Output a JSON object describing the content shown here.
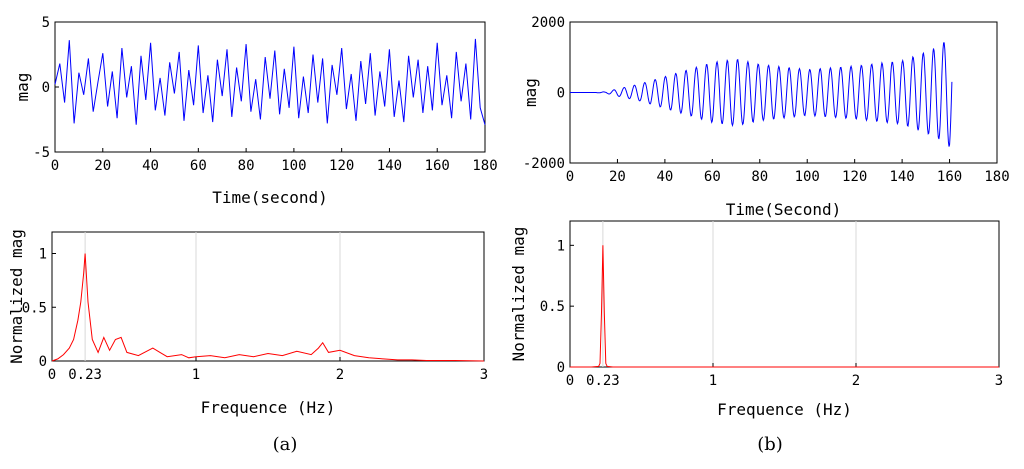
{
  "chart_data": [
    {
      "id": "a-top",
      "type": "line",
      "xlabel": "Time(second)",
      "ylabel": "mag",
      "xlim": [
        0,
        180
      ],
      "ylim": [
        -5,
        5
      ],
      "xticks": [
        0,
        20,
        40,
        60,
        80,
        100,
        120,
        140,
        160,
        180
      ],
      "yticks": [
        -5,
        0,
        5
      ],
      "color": "#0000ff",
      "series": [
        {
          "name": "signal",
          "x": [
            0,
            2,
            4,
            6,
            8,
            10,
            12,
            14,
            16,
            18,
            20,
            22,
            24,
            26,
            28,
            30,
            32,
            34,
            36,
            38,
            40,
            42,
            44,
            46,
            48,
            50,
            52,
            54,
            56,
            58,
            60,
            62,
            64,
            66,
            68,
            70,
            72,
            74,
            76,
            78,
            80,
            82,
            84,
            86,
            88,
            90,
            92,
            94,
            96,
            98,
            100,
            102,
            104,
            106,
            108,
            110,
            112,
            114,
            116,
            118,
            120,
            122,
            124,
            126,
            128,
            130,
            132,
            134,
            136,
            138,
            140,
            142,
            144,
            146,
            148,
            150,
            152,
            154,
            156,
            158,
            160,
            162,
            164,
            166,
            168,
            170,
            172,
            174,
            176,
            178,
            180
          ],
          "values": [
            0.2,
            1.8,
            -1.2,
            3.6,
            -2.8,
            1.1,
            -0.6,
            2.2,
            -1.9,
            0.4,
            2.6,
            -1.5,
            1.2,
            -2.4,
            3.0,
            -0.8,
            1.6,
            -2.9,
            2.4,
            -1.0,
            3.4,
            -1.8,
            0.7,
            -2.2,
            1.9,
            -0.5,
            2.7,
            -2.6,
            1.3,
            -1.4,
            3.2,
            -2.0,
            0.9,
            -2.7,
            2.1,
            -0.7,
            2.9,
            -2.3,
            1.5,
            -1.1,
            3.3,
            -1.9,
            0.6,
            -2.5,
            2.3,
            -0.9,
            2.8,
            -2.1,
            1.4,
            -1.6,
            3.1,
            -2.4,
            0.8,
            -2.0,
            2.5,
            -1.2,
            2.2,
            -2.8,
            1.7,
            -0.6,
            3.0,
            -1.7,
            1.0,
            -2.6,
            2.0,
            -1.3,
            2.6,
            -2.2,
            1.2,
            -1.5,
            2.9,
            -2.3,
            0.5,
            -2.7,
            2.4,
            -0.8,
            2.1,
            -2.0,
            1.6,
            -1.8,
            3.4,
            -1.4,
            0.9,
            -2.4,
            2.7,
            -1.1,
            1.8,
            -2.5,
            3.7,
            -1.6,
            -2.9
          ]
        }
      ]
    },
    {
      "id": "a-bottom",
      "type": "line",
      "xlabel": "Frequence (Hz)",
      "ylabel": "Normalized mag",
      "xlim": [
        0,
        3
      ],
      "ylim": [
        0,
        1.2
      ],
      "xticks": [
        0,
        1,
        2,
        3
      ],
      "xtick_labels": [
        "0",
        "1",
        "2",
        "3"
      ],
      "extra_xtick": 0.23,
      "extra_xtick_label": "0.23",
      "yticks": [
        0,
        0.5,
        1
      ],
      "ytick_labels": [
        "0",
        "0.5",
        "1"
      ],
      "color": "#ff0000",
      "series": [
        {
          "name": "spectrum",
          "x": [
            0,
            0.04,
            0.08,
            0.12,
            0.15,
            0.18,
            0.2,
            0.22,
            0.23,
            0.25,
            0.28,
            0.32,
            0.36,
            0.4,
            0.44,
            0.48,
            0.52,
            0.6,
            0.7,
            0.75,
            0.8,
            0.9,
            0.95,
            1.0,
            1.1,
            1.2,
            1.3,
            1.4,
            1.5,
            1.6,
            1.7,
            1.8,
            1.85,
            1.88,
            1.92,
            2.0,
            2.1,
            2.2,
            2.3,
            2.4,
            2.5,
            2.6,
            2.8,
            3.0
          ],
          "values": [
            0,
            0.02,
            0.06,
            0.12,
            0.2,
            0.38,
            0.55,
            0.82,
            1.0,
            0.55,
            0.2,
            0.08,
            0.22,
            0.1,
            0.2,
            0.22,
            0.08,
            0.05,
            0.12,
            0.08,
            0.04,
            0.06,
            0.03,
            0.04,
            0.05,
            0.03,
            0.06,
            0.04,
            0.07,
            0.05,
            0.09,
            0.06,
            0.12,
            0.17,
            0.08,
            0.1,
            0.05,
            0.03,
            0.02,
            0.01,
            0.01,
            0.005,
            0.005,
            0
          ]
        }
      ]
    },
    {
      "id": "b-top",
      "type": "line",
      "xlabel": "Time(Second)",
      "ylabel": "mag",
      "xlim": [
        0,
        180
      ],
      "ylim": [
        -2000,
        2000
      ],
      "xticks": [
        0,
        20,
        40,
        60,
        80,
        100,
        120,
        140,
        160,
        180
      ],
      "yticks": [
        -2000,
        0,
        2000
      ],
      "color": "#0000ff",
      "series": [
        {
          "name": "signal",
          "frequency_hz": 0.23,
          "duration_s": 161,
          "envelope_t": [
            0,
            10,
            15,
            20,
            30,
            45,
            60,
            70,
            80,
            100,
            120,
            140,
            150,
            155,
            160,
            161
          ],
          "envelope_amp": [
            0,
            0,
            20,
            100,
            250,
            550,
            850,
            950,
            800,
            650,
            750,
            900,
            1150,
            1300,
            1550,
            1600
          ]
        }
      ]
    },
    {
      "id": "b-bottom",
      "type": "line",
      "xlabel": "Frequence (Hz)",
      "ylabel": "Normalized mag",
      "xlim": [
        0,
        3
      ],
      "ylim": [
        0,
        1.2
      ],
      "xticks": [
        0,
        1,
        2,
        3
      ],
      "xtick_labels": [
        "0",
        "1",
        "2",
        "3"
      ],
      "extra_xtick": 0.23,
      "extra_xtick_label": "0.23",
      "yticks": [
        0,
        0.5,
        1
      ],
      "ytick_labels": [
        "0",
        "0.5",
        "1"
      ],
      "color": "#ff0000",
      "series": [
        {
          "name": "spectrum",
          "x": [
            0,
            0.15,
            0.2,
            0.21,
            0.22,
            0.23,
            0.24,
            0.25,
            0.26,
            0.3,
            1,
            2,
            3
          ],
          "values": [
            0,
            0,
            0.005,
            0.03,
            0.45,
            1.0,
            0.45,
            0.03,
            0.005,
            0,
            0,
            0,
            0
          ]
        }
      ]
    }
  ],
  "captions": {
    "a": "(a)",
    "b": "(b)"
  }
}
